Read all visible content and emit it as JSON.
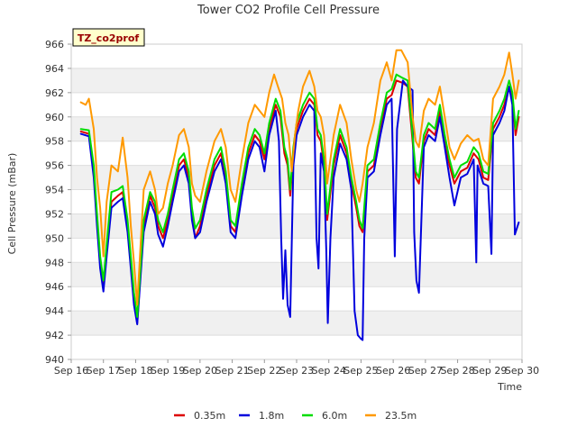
{
  "chart_data": {
    "type": "line",
    "title": "Tower CO2 Profile Cell Pressure",
    "xlabel": "Time",
    "ylabel": "Cell Pressure (mBar)",
    "ylim": [
      940,
      966
    ],
    "xlim": [
      16,
      30
    ],
    "y_ticks": [
      940,
      942,
      944,
      946,
      948,
      950,
      952,
      954,
      956,
      958,
      960,
      962,
      964,
      966
    ],
    "x_ticks": [
      16,
      17,
      18,
      19,
      20,
      21,
      22,
      23,
      24,
      25,
      26,
      27,
      28,
      29,
      30
    ],
    "x_tick_labels": [
      "Sep 16",
      "Sep 17",
      "Sep 18",
      "Sep 19",
      "Sep 20",
      "Sep 21",
      "Sep 22",
      "Sep 23",
      "Sep 24",
      "Sep 25",
      "Sep 26",
      "Sep 27",
      "Sep 28",
      "Sep 29",
      "Sep 30"
    ],
    "site_label": "TZ_co2prof",
    "grid": "horizontal banded",
    "legend_position": "bottom",
    "series": [
      {
        "name": "0.35m",
        "color": "#dd0000",
        "x": [
          16.3,
          16.55,
          16.7,
          16.8,
          16.9,
          17.0,
          17.1,
          17.25,
          17.45,
          17.6,
          17.75,
          17.85,
          17.95,
          18.05,
          18.25,
          18.45,
          18.6,
          18.7,
          18.85,
          19.0,
          19.15,
          19.35,
          19.5,
          19.65,
          19.75,
          19.85,
          20.0,
          20.2,
          20.45,
          20.65,
          20.8,
          20.95,
          21.1,
          21.3,
          21.5,
          21.7,
          21.85,
          22.0,
          22.15,
          22.25,
          22.35,
          22.5,
          22.62,
          22.72,
          22.8,
          22.9,
          23.0,
          23.2,
          23.4,
          23.55,
          23.65,
          23.75,
          23.85,
          23.95,
          24.15,
          24.35,
          24.55,
          24.7,
          24.85,
          24.95,
          25.05,
          25.2,
          25.4,
          25.6,
          25.8,
          25.95,
          26.1,
          26.3,
          26.45,
          26.6,
          26.7,
          26.8,
          26.95,
          27.1,
          27.3,
          27.45,
          27.6,
          27.75,
          27.9,
          28.1,
          28.3,
          28.5,
          28.65,
          28.8,
          28.95,
          29.1,
          29.3,
          29.45,
          29.6,
          29.7,
          29.8,
          29.9
        ],
        "values": [
          958.8,
          958.6,
          955.5,
          951.5,
          948.0,
          946.0,
          949.0,
          953.0,
          953.5,
          953.8,
          951.0,
          948.0,
          945.0,
          943.0,
          951.0,
          953.5,
          952.5,
          951.0,
          950.0,
          951.5,
          953.5,
          956.0,
          956.5,
          955.0,
          952.0,
          950.0,
          951.0,
          953.5,
          956.0,
          957.0,
          955.0,
          951.0,
          950.5,
          954.0,
          957.0,
          958.5,
          958.0,
          956.5,
          959.0,
          960.0,
          961.0,
          960.0,
          957.0,
          956.0,
          953.5,
          957.0,
          959.0,
          960.5,
          961.5,
          961.0,
          958.5,
          958.0,
          956.0,
          951.5,
          956.0,
          958.5,
          957.0,
          954.5,
          952.5,
          951.0,
          950.5,
          955.5,
          956.0,
          959.0,
          961.5,
          961.8,
          963.0,
          962.8,
          962.5,
          958.0,
          955.0,
          954.5,
          958.0,
          959.0,
          958.5,
          960.5,
          958.0,
          956.0,
          954.5,
          955.5,
          955.8,
          957.0,
          956.5,
          955.0,
          954.8,
          959.0,
          960.0,
          961.0,
          962.5,
          961.5,
          958.5,
          960.0
        ]
      },
      {
        "name": "1.8m",
        "color": "#0000dd",
        "x": [
          16.3,
          16.55,
          16.7,
          16.8,
          16.9,
          17.0,
          17.1,
          17.25,
          17.45,
          17.6,
          17.75,
          17.85,
          17.95,
          18.05,
          18.25,
          18.45,
          18.6,
          18.7,
          18.85,
          19.0,
          19.15,
          19.35,
          19.5,
          19.65,
          19.75,
          19.85,
          20.0,
          20.2,
          20.45,
          20.65,
          20.8,
          20.95,
          21.1,
          21.3,
          21.5,
          21.7,
          21.85,
          22.0,
          22.15,
          22.25,
          22.35,
          22.45,
          22.52,
          22.58,
          22.65,
          22.72,
          22.8,
          22.9,
          23.0,
          23.2,
          23.4,
          23.55,
          23.62,
          23.68,
          23.75,
          23.85,
          23.92,
          23.97,
          24.05,
          24.15,
          24.35,
          24.55,
          24.7,
          24.8,
          24.9,
          25.0,
          25.05,
          25.1,
          25.2,
          25.4,
          25.6,
          25.8,
          25.95,
          26.05,
          26.12,
          26.3,
          26.45,
          26.6,
          26.65,
          26.72,
          26.8,
          26.95,
          27.1,
          27.3,
          27.45,
          27.6,
          27.75,
          27.9,
          28.1,
          28.3,
          28.5,
          28.58,
          28.62,
          28.8,
          28.95,
          29.05,
          29.1,
          29.3,
          29.45,
          29.6,
          29.7,
          29.78,
          29.9
        ],
        "values": [
          958.6,
          958.4,
          955.0,
          951.0,
          947.5,
          945.6,
          948.5,
          952.5,
          953.0,
          953.3,
          950.5,
          947.5,
          944.5,
          942.9,
          950.5,
          953.0,
          952.0,
          950.3,
          949.3,
          951.0,
          953.0,
          955.5,
          956.0,
          954.5,
          951.5,
          950.0,
          950.5,
          953.0,
          955.5,
          956.5,
          954.5,
          950.5,
          950.0,
          953.5,
          956.5,
          958.0,
          957.5,
          955.5,
          958.5,
          959.5,
          960.5,
          958.0,
          950.0,
          945.0,
          949.0,
          944.5,
          943.5,
          956.0,
          958.5,
          960.0,
          961.0,
          960.5,
          950.0,
          947.5,
          957.0,
          955.5,
          949.0,
          943.0,
          950.0,
          955.0,
          957.8,
          956.5,
          954.0,
          944.0,
          942.0,
          941.7,
          941.6,
          950.0,
          955.0,
          955.5,
          958.5,
          961.0,
          961.5,
          948.5,
          959.0,
          963.0,
          962.5,
          962.2,
          950.5,
          946.5,
          945.5,
          957.5,
          958.5,
          958.0,
          960.0,
          957.5,
          955.0,
          952.7,
          955.0,
          955.3,
          956.5,
          948.0,
          956.0,
          954.5,
          954.3,
          948.7,
          958.5,
          959.5,
          960.5,
          962.5,
          961.0,
          950.3,
          951.3
        ]
      },
      {
        "name": "6.0m",
        "color": "#00dd00",
        "x": [
          16.3,
          16.55,
          16.7,
          16.8,
          16.9,
          17.0,
          17.1,
          17.25,
          17.45,
          17.6,
          17.75,
          17.85,
          17.95,
          18.05,
          18.25,
          18.45,
          18.6,
          18.7,
          18.85,
          19.0,
          19.15,
          19.35,
          19.5,
          19.65,
          19.75,
          19.85,
          20.0,
          20.2,
          20.45,
          20.65,
          20.8,
          20.95,
          21.1,
          21.3,
          21.5,
          21.7,
          21.85,
          22.0,
          22.15,
          22.25,
          22.35,
          22.5,
          22.62,
          22.72,
          22.8,
          22.9,
          23.0,
          23.2,
          23.4,
          23.55,
          23.65,
          23.75,
          23.85,
          23.95,
          24.15,
          24.35,
          24.55,
          24.7,
          24.85,
          24.95,
          25.05,
          25.2,
          25.4,
          25.6,
          25.8,
          25.95,
          26.1,
          26.3,
          26.45,
          26.6,
          26.7,
          26.8,
          26.95,
          27.1,
          27.3,
          27.45,
          27.6,
          27.75,
          27.9,
          28.1,
          28.3,
          28.5,
          28.65,
          28.8,
          28.95,
          29.1,
          29.3,
          29.45,
          29.6,
          29.7,
          29.8,
          29.9
        ],
        "values": [
          959.0,
          958.9,
          956.0,
          952.0,
          948.5,
          946.5,
          949.5,
          953.8,
          954.0,
          954.3,
          951.5,
          948.5,
          945.5,
          943.5,
          951.5,
          953.8,
          953.0,
          951.5,
          950.5,
          952.0,
          954.0,
          956.5,
          957.0,
          955.5,
          952.5,
          950.8,
          951.5,
          954.0,
          956.5,
          957.5,
          955.5,
          951.5,
          951.0,
          954.5,
          957.5,
          959.0,
          958.5,
          957.0,
          959.5,
          960.5,
          961.5,
          960.5,
          957.5,
          956.5,
          954.0,
          957.5,
          959.5,
          961.0,
          962.0,
          961.5,
          959.0,
          958.5,
          956.5,
          952.0,
          956.5,
          959.0,
          957.5,
          955.0,
          953.0,
          951.5,
          950.8,
          956.0,
          956.5,
          959.5,
          962.0,
          962.3,
          963.5,
          963.2,
          963.0,
          958.5,
          955.5,
          955.0,
          958.5,
          959.5,
          959.0,
          961.0,
          958.5,
          956.5,
          955.0,
          956.0,
          956.3,
          957.5,
          957.0,
          955.5,
          955.3,
          959.5,
          960.5,
          961.5,
          963.0,
          962.0,
          959.0,
          960.5
        ]
      },
      {
        "name": "23.5m",
        "color": "#ff9900",
        "x": [
          16.3,
          16.45,
          16.55,
          16.7,
          16.8,
          16.9,
          17.0,
          17.1,
          17.25,
          17.45,
          17.6,
          17.75,
          17.85,
          17.95,
          18.05,
          18.25,
          18.45,
          18.6,
          18.7,
          18.85,
          19.0,
          19.15,
          19.35,
          19.5,
          19.65,
          19.75,
          19.85,
          20.0,
          20.2,
          20.45,
          20.65,
          20.8,
          20.95,
          21.1,
          21.3,
          21.5,
          21.7,
          21.85,
          22.0,
          22.15,
          22.3,
          22.42,
          22.55,
          22.65,
          22.75,
          22.85,
          22.95,
          23.05,
          23.2,
          23.4,
          23.55,
          23.65,
          23.75,
          23.85,
          23.95,
          24.15,
          24.35,
          24.55,
          24.7,
          24.85,
          24.95,
          25.05,
          25.2,
          25.4,
          25.6,
          25.8,
          25.95,
          26.1,
          26.25,
          26.45,
          26.6,
          26.7,
          26.8,
          26.95,
          27.1,
          27.3,
          27.45,
          27.6,
          27.75,
          27.9,
          28.1,
          28.3,
          28.5,
          28.65,
          28.8,
          28.95,
          29.1,
          29.3,
          29.45,
          29.6,
          29.7,
          29.8,
          29.9
        ],
        "values": [
          961.2,
          961.0,
          961.5,
          959.0,
          955.0,
          952.5,
          948.5,
          953.0,
          956.0,
          955.5,
          958.3,
          955.0,
          951.0,
          948.0,
          944.5,
          954.0,
          955.5,
          954.0,
          952.0,
          952.5,
          954.5,
          956.0,
          958.5,
          959.0,
          957.5,
          954.5,
          953.5,
          953.0,
          955.5,
          958.0,
          959.0,
          957.5,
          954.0,
          953.0,
          956.5,
          959.5,
          961.0,
          960.5,
          960.0,
          962.0,
          963.5,
          962.5,
          961.5,
          959.5,
          958.5,
          955.5,
          958.5,
          960.5,
          962.5,
          963.8,
          962.5,
          960.5,
          960.0,
          958.5,
          954.5,
          958.5,
          961.0,
          959.5,
          956.5,
          954.0,
          953.0,
          954.5,
          957.5,
          959.5,
          963.0,
          964.5,
          963.0,
          965.5,
          965.5,
          964.5,
          960.0,
          958.0,
          957.5,
          960.5,
          961.5,
          961.0,
          962.5,
          960.0,
          957.5,
          956.5,
          957.8,
          958.5,
          958.0,
          958.2,
          956.5,
          956.0,
          961.5,
          962.5,
          963.5,
          965.3,
          963.5,
          961.5,
          963.0
        ]
      }
    ]
  }
}
